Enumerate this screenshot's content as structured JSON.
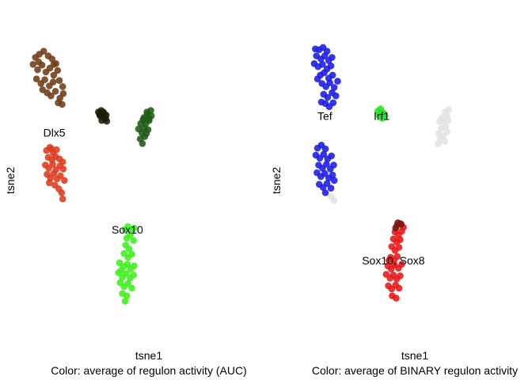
{
  "chart_data": [
    {
      "type": "scatter",
      "xlabel": "tsne1",
      "ylabel": "tsne2",
      "subtitle": "Color: average of regulon activity (AUC)",
      "grid": false,
      "xlim": [
        -22,
        22
      ],
      "ylim": [
        -22,
        20
      ],
      "annotations": [
        {
          "text": "Dlx5",
          "x": -15.1,
          "y": 5.0
        },
        {
          "text": "Sox10",
          "x": -2.0,
          "y": -7.6
        }
      ],
      "series": [
        {
          "color": "#6e3b16",
          "points": [
            [
              -18.5,
              14.8
            ],
            [
              -17.8,
              15.2
            ],
            [
              -17.0,
              15.6
            ],
            [
              -16.2,
              15.0
            ],
            [
              -15.5,
              14.6
            ],
            [
              -14.8,
              14.0
            ],
            [
              -18.9,
              13.9
            ],
            [
              -18.1,
              13.2
            ],
            [
              -17.3,
              13.8
            ],
            [
              -16.6,
              12.9
            ],
            [
              -15.9,
              13.4
            ],
            [
              -15.2,
              12.5
            ],
            [
              -14.5,
              13.1
            ],
            [
              -18.3,
              12.0
            ],
            [
              -17.5,
              11.4
            ],
            [
              -16.8,
              11.9
            ],
            [
              -16.0,
              11.1
            ],
            [
              -15.3,
              11.6
            ],
            [
              -14.2,
              11.8
            ],
            [
              -13.6,
              11.0
            ],
            [
              -16.4,
              10.2
            ],
            [
              -15.7,
              9.8
            ],
            [
              -14.9,
              10.4
            ],
            [
              -14.1,
              9.5
            ],
            [
              -13.5,
              10.1
            ],
            [
              -17.2,
              10.6
            ],
            [
              -13.7,
              8.7
            ],
            [
              -14.4,
              8.9
            ],
            [
              -15.2,
              13.9
            ],
            [
              -17.9,
              14.2
            ]
          ]
        },
        {
          "color": "#1f1a0a",
          "points": [
            [
              -7.2,
              7.7
            ],
            [
              -6.7,
              7.9
            ],
            [
              -6.2,
              7.5
            ],
            [
              -6.9,
              7.2
            ],
            [
              -6.4,
              7.0
            ],
            [
              -5.8,
              7.3
            ],
            [
              -6.0,
              6.8
            ],
            [
              -6.6,
              6.6
            ],
            [
              -5.7,
              6.5
            ],
            [
              -7.0,
              7.4
            ],
            [
              -6.3,
              7.7
            ],
            [
              -5.9,
              6.9
            ]
          ]
        },
        {
          "color": "#1f5a16",
          "points": [
            [
              1.6,
              7.4
            ],
            [
              2.2,
              7.9
            ],
            [
              1.0,
              7.0
            ],
            [
              1.9,
              6.6
            ],
            [
              1.3,
              6.2
            ],
            [
              0.4,
              6.2
            ],
            [
              1.0,
              5.6
            ],
            [
              1.7,
              5.4
            ],
            [
              0.6,
              5.0
            ],
            [
              1.1,
              4.5
            ],
            [
              0.3,
              4.2
            ],
            [
              0.7,
              3.6
            ],
            [
              1.9,
              6.9
            ],
            [
              2.3,
              7.2
            ],
            [
              1.5,
              7.7
            ],
            [
              0.0,
              5.5
            ],
            [
              0.8,
              6.7
            ],
            [
              1.4,
              4.9
            ]
          ]
        },
        {
          "color": "#dd3a1e",
          "points": [
            [
              -16.5,
              2.7
            ],
            [
              -15.9,
              3.1
            ],
            [
              -15.3,
              2.4
            ],
            [
              -14.7,
              2.8
            ],
            [
              -16.2,
              1.8
            ],
            [
              -15.5,
              1.5
            ],
            [
              -14.9,
              1.9
            ],
            [
              -14.2,
              1.6
            ],
            [
              -13.6,
              1.2
            ],
            [
              -16.7,
              0.8
            ],
            [
              -16.1,
              0.4
            ],
            [
              -15.4,
              0.9
            ],
            [
              -14.8,
              0.2
            ],
            [
              -14.1,
              0.7
            ],
            [
              -13.5,
              0.3
            ],
            [
              -16.4,
              -0.4
            ],
            [
              -15.8,
              -0.9
            ],
            [
              -15.2,
              -0.3
            ],
            [
              -14.6,
              -1.0
            ],
            [
              -14.0,
              -0.6
            ],
            [
              -13.3,
              -1.2
            ],
            [
              -15.0,
              -1.8
            ],
            [
              -14.3,
              -2.3
            ],
            [
              -13.8,
              -2.8
            ],
            [
              -13.6,
              -3.6
            ],
            [
              -16.0,
              -1.5
            ],
            [
              -15.6,
              2.9
            ]
          ]
        },
        {
          "color": "#3cf01a",
          "points": [
            [
              -2.4,
              -7.6
            ],
            [
              -1.9,
              -7.2
            ],
            [
              -1.3,
              -7.9
            ],
            [
              -0.8,
              -7.4
            ],
            [
              -2.1,
              -8.7
            ],
            [
              -1.5,
              -8.3
            ],
            [
              -0.9,
              -9.0
            ],
            [
              -2.3,
              -9.6
            ],
            [
              -1.7,
              -10.1
            ],
            [
              -2.6,
              -10.7
            ],
            [
              -1.9,
              -11.2
            ],
            [
              -1.2,
              -10.8
            ],
            [
              -3.4,
              -11.9
            ],
            [
              -2.7,
              -12.4
            ],
            [
              -2.0,
              -12.1
            ],
            [
              -1.4,
              -12.7
            ],
            [
              -0.8,
              -12.3
            ],
            [
              -3.6,
              -13.2
            ],
            [
              -2.9,
              -13.8
            ],
            [
              -2.2,
              -13.3
            ],
            [
              -1.5,
              -13.9
            ],
            [
              -0.9,
              -13.5
            ],
            [
              -3.3,
              -14.5
            ],
            [
              -2.6,
              -15.0
            ],
            [
              -1.9,
              -14.6
            ],
            [
              -1.2,
              -15.2
            ],
            [
              -2.9,
              -15.9
            ],
            [
              -2.1,
              -16.2
            ],
            [
              -2.4,
              -16.9
            ],
            [
              -3.1,
              -12.9
            ]
          ]
        }
      ]
    },
    {
      "type": "scatter",
      "xlabel": "tsne1",
      "ylabel": "tsne2",
      "subtitle": "Color: average of BINARY regulon activity",
      "grid": false,
      "xlim": [
        -22,
        22
      ],
      "ylim": [
        -22,
        20
      ],
      "annotations": [
        {
          "text": "Tef",
          "x": -14.3,
          "y": 7.2
        },
        {
          "text": "Irf1",
          "x": -4.1,
          "y": 7.2
        },
        {
          "text": "Sox10, Sox8",
          "x": -2.0,
          "y": -11.6
        }
      ],
      "series": [
        {
          "color": "#1a1ae6",
          "points": [
            [
              -15.3,
              15.8
            ],
            [
              -14.6,
              16.1
            ],
            [
              -13.9,
              15.6
            ],
            [
              -15.8,
              15.0
            ],
            [
              -15.0,
              14.6
            ],
            [
              -14.3,
              15.0
            ],
            [
              -13.6,
              14.4
            ],
            [
              -16.2,
              14.0
            ],
            [
              -15.5,
              13.6
            ],
            [
              -14.7,
              13.9
            ],
            [
              -13.9,
              13.3
            ],
            [
              -13.2,
              13.7
            ],
            [
              -15.1,
              12.5
            ],
            [
              -14.4,
              12.8
            ],
            [
              -13.6,
              12.1
            ],
            [
              -12.9,
              12.5
            ],
            [
              -14.8,
              11.4
            ],
            [
              -14.1,
              11.0
            ],
            [
              -13.4,
              11.5
            ],
            [
              -12.6,
              10.9
            ],
            [
              -14.5,
              10.0
            ],
            [
              -13.8,
              9.6
            ],
            [
              -13.0,
              10.2
            ],
            [
              -12.3,
              9.8
            ],
            [
              -14.2,
              8.8
            ],
            [
              -13.5,
              8.4
            ],
            [
              -12.8,
              8.9
            ],
            [
              -14.9,
              9.0
            ],
            [
              -12.0,
              11.7
            ],
            [
              -16.0,
              15.9
            ],
            [
              -13.0,
              14.8
            ],
            [
              -15.6,
              12.0
            ]
          ]
        },
        {
          "color": "#1a1ae6",
          "points": [
            [
              -15.6,
              3.0
            ],
            [
              -14.9,
              3.4
            ],
            [
              -14.2,
              2.9
            ],
            [
              -15.9,
              2.1
            ],
            [
              -15.2,
              1.7
            ],
            [
              -14.5,
              2.2
            ],
            [
              -13.8,
              1.6
            ],
            [
              -13.1,
              2.0
            ],
            [
              -15.4,
              0.8
            ],
            [
              -14.7,
              0.4
            ],
            [
              -14.0,
              0.9
            ],
            [
              -13.3,
              0.3
            ],
            [
              -12.7,
              0.8
            ],
            [
              -15.7,
              -0.2
            ],
            [
              -15.0,
              -0.7
            ],
            [
              -14.3,
              -0.3
            ],
            [
              -13.6,
              -0.9
            ],
            [
              -12.9,
              -0.5
            ],
            [
              -15.3,
              -1.7
            ],
            [
              -14.6,
              -2.1
            ],
            [
              -13.9,
              -1.6
            ],
            [
              -13.2,
              -2.2
            ],
            [
              -14.2,
              -2.8
            ],
            [
              -12.6,
              -1.2
            ]
          ]
        },
        {
          "color": "#1ee61a",
          "points": [
            [
              -4.8,
              7.8
            ],
            [
              -4.3,
              8.1
            ],
            [
              -3.8,
              7.6
            ],
            [
              -4.5,
              7.2
            ],
            [
              -4.0,
              6.9
            ],
            [
              -3.5,
              7.2
            ]
          ]
        },
        {
          "color": "#e81414",
          "points": [
            [
              -1.4,
              -7.1
            ],
            [
              -0.8,
              -6.8
            ],
            [
              -0.2,
              -7.3
            ],
            [
              -1.7,
              -7.9
            ],
            [
              -1.1,
              -8.3
            ],
            [
              -0.5,
              -7.8
            ],
            [
              -2.0,
              -8.8
            ],
            [
              -1.4,
              -9.2
            ],
            [
              -0.8,
              -8.9
            ],
            [
              -2.3,
              -9.8
            ],
            [
              -1.7,
              -10.3
            ],
            [
              -1.0,
              -9.9
            ],
            [
              -2.5,
              -11.2
            ],
            [
              -1.9,
              -11.6
            ],
            [
              -1.3,
              -11.1
            ],
            [
              -3.0,
              -12.3
            ],
            [
              -2.4,
              -12.7
            ],
            [
              -1.8,
              -12.2
            ],
            [
              -1.1,
              -12.6
            ],
            [
              -0.5,
              -12.1
            ],
            [
              -3.3,
              -13.4
            ],
            [
              -2.6,
              -13.9
            ],
            [
              -2.0,
              -13.5
            ],
            [
              -1.4,
              -14.0
            ],
            [
              -0.8,
              -13.6
            ],
            [
              -2.9,
              -14.9
            ],
            [
              -2.3,
              -15.3
            ],
            [
              -1.6,
              -14.8
            ],
            [
              -1.0,
              -15.2
            ],
            [
              -2.2,
              -16.2
            ],
            [
              -1.5,
              -16.5
            ],
            [
              -2.8,
              -11.6
            ]
          ]
        },
        {
          "color": "#7a1414",
          "points": [
            [
              -1.2,
              -6.7
            ],
            [
              -0.6,
              -6.9
            ],
            [
              -1.6,
              -7.4
            ]
          ]
        },
        {
          "color": "#e3e3e3",
          "points": [
            [
              7.3,
              7.7
            ],
            [
              7.9,
              8.0
            ],
            [
              6.8,
              7.0
            ],
            [
              7.6,
              7.2
            ],
            [
              6.3,
              6.5
            ],
            [
              7.1,
              6.3
            ],
            [
              7.8,
              6.6
            ],
            [
              6.6,
              5.6
            ],
            [
              7.4,
              5.8
            ],
            [
              6.1,
              4.9
            ],
            [
              6.9,
              4.6
            ],
            [
              7.6,
              5.1
            ],
            [
              6.4,
              4.1
            ],
            [
              7.2,
              3.9
            ],
            [
              6.0,
              3.6
            ],
            [
              -12.6,
              -3.8
            ],
            [
              -13.2,
              -3.3
            ]
          ]
        }
      ]
    }
  ]
}
